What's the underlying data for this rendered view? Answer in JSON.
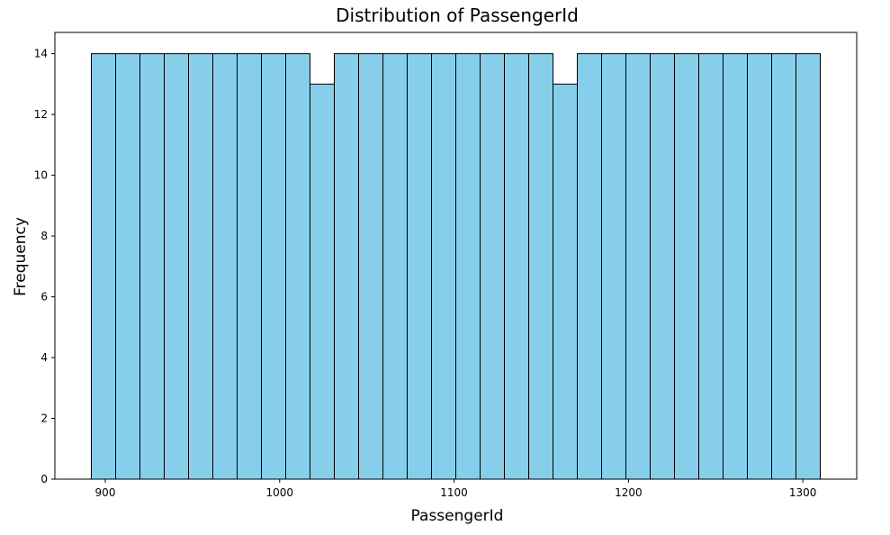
{
  "chart_data": {
    "type": "bar",
    "title": "Distribution of PassengerId",
    "xlabel": "PassengerId",
    "ylabel": "Frequency",
    "bin_start": 892,
    "bin_width": 13.9333,
    "values": [
      14,
      14,
      14,
      14,
      14,
      14,
      14,
      14,
      14,
      13,
      14,
      14,
      14,
      14,
      14,
      14,
      14,
      14,
      14,
      13,
      14,
      14,
      14,
      14,
      14,
      14,
      14,
      14,
      14,
      14
    ],
    "xlim": [
      871.1,
      1330.9
    ],
    "ylim": [
      0,
      14.7
    ],
    "xticks": [
      900,
      1000,
      1100,
      1200,
      1300
    ],
    "yticks": [
      0,
      2,
      4,
      6,
      8,
      10,
      12,
      14
    ],
    "grid": false,
    "colors": {
      "bar_fill": "#87CEEB",
      "bar_edge": "#000000",
      "axis": "#000000"
    }
  }
}
